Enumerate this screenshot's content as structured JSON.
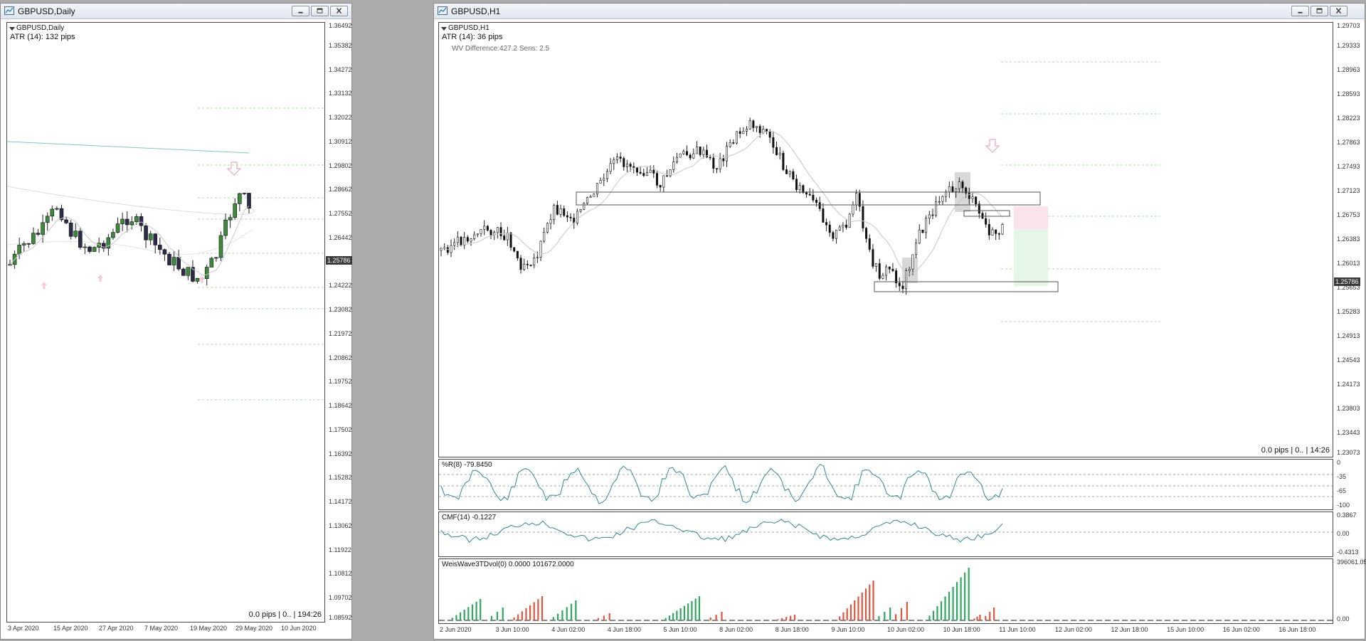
{
  "colors": {
    "bull": "#3c8a3c",
    "bear": "#2b2b4a",
    "wick": "#222",
    "accent": "#2e8b8b",
    "wvUp": "#2fa85f",
    "wvDown": "#e0553d"
  },
  "left": {
    "title": "GBPUSD,Daily",
    "sym": "GBPUSD,Daily",
    "atr": "ATR (14): 132 pips",
    "footer": "0.0 pips | 0.. | 194:26",
    "price_tag": "1.25786",
    "price_levels": [
      "1.36492",
      "1.35382",
      "1.34272",
      "1.33132",
      "1.32022",
      "1.30912",
      "1.29802",
      "1.28662",
      "1.27552",
      "1.26442",
      "1.25332",
      "1.24222",
      "1.23082",
      "1.21972",
      "1.20862",
      "1.19752",
      "1.18642",
      "1.17502",
      "1.16392",
      "1.15282",
      "1.14172",
      "1.13062",
      "1.11922",
      "1.10812",
      "1.09702",
      "1.08592"
    ],
    "time_labels": [
      "3 Apr 2020",
      "15 Apr 2020",
      "27 Apr 2020",
      "7 May 2020",
      "19 May 2020",
      "29 May 2020",
      "10 Jun 2020"
    ],
    "icons": [
      "arrow-up-icon",
      "arrow-down-icon"
    ]
  },
  "right": {
    "title": "GBPUSD,H1",
    "sym": "GBPUSD,H1",
    "atr": "ATR (14): 36 pips",
    "wv": "WV Difference:427.2 Sens: 2.5",
    "footer": "0.0 pips | 0.. | 14:26",
    "price_tag": "1.25786",
    "price_levels": [
      "1.29703",
      "1.29333",
      "1.28963",
      "1.28593",
      "1.28223",
      "1.27863",
      "1.27493",
      "1.27123",
      "1.26753",
      "1.26383",
      "1.26013",
      "1.25653",
      "1.25283",
      "1.24913",
      "1.24543",
      "1.24173",
      "1.23803",
      "1.23443",
      "1.23073"
    ],
    "time_labels": [
      "2 Jun 2020",
      "3 Jun 10:00",
      "4 Jun 02:00",
      "4 Jun 18:00",
      "5 Jun 10:00",
      "8 Jun 02:00",
      "8 Jun 18:00",
      "9 Jun 10:00",
      "10 Jun 02:00",
      "10 Jun 18:00",
      "11 Jun 10:00",
      "12 Jun 02:00",
      "12 Jun 18:00",
      "15 Jun 10:00",
      "16 Jun 02:00",
      "16 Jun 18:00"
    ],
    "wpr": {
      "label": "%R(8) -79.8450",
      "levels": [
        "0",
        "-35",
        "-65",
        "-100"
      ]
    },
    "cmf": {
      "label": "CMF(14) -0.1227",
      "levels": [
        "0.3867",
        "0.00",
        "-0.4313"
      ]
    },
    "wv_ind": {
      "label": "WeisWave3TDvol(0) 0.0000 101672.0000",
      "levels": [
        "396061.05",
        "0.00"
      ]
    }
  }
}
